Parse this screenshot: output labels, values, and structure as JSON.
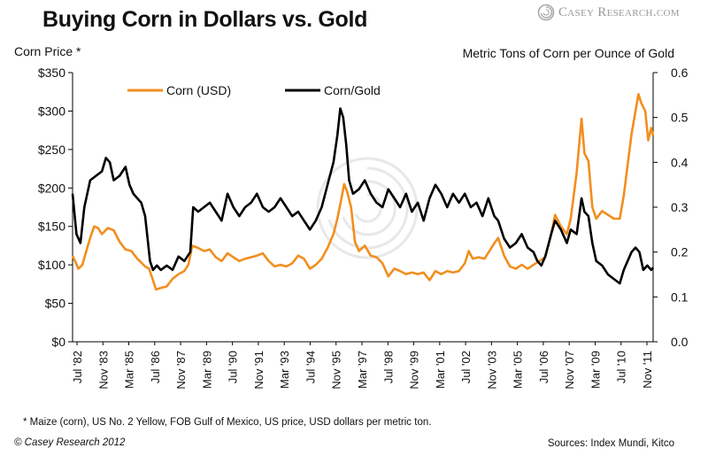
{
  "title": "Buying Corn in Dollars vs. Gold",
  "brand": {
    "name": "Casey Research.com",
    "logo_icon": "swirl-logo-icon"
  },
  "colors": {
    "corn": "#f28e1e",
    "gold": "#000000",
    "watermark": "#e6e6e6"
  },
  "left_axis_label": "Corn Price *",
  "right_axis_label": "Metric Tons of Corn per Ounce of Gold",
  "footnote": "* Maize (corn), US No. 2 Yellow, FOB Gulf of Mexico, US price, USD dollars per metric ton.",
  "copyright": "© Casey Research 2012",
  "sources": "Sources: Index Mundi, Kitco",
  "chart_data": {
    "type": "line",
    "x_unit": "decimal year",
    "xlim": [
      1982.5,
      2012.1
    ],
    "left_axis": {
      "label": "Corn Price *",
      "ylim": [
        0,
        350
      ],
      "ticks": [
        "$0",
        "$50",
        "$100",
        "$150",
        "$200",
        "$250",
        "$300",
        "$350"
      ]
    },
    "right_axis": {
      "label": "Metric Tons of Corn per Ounce of Gold",
      "ylim": [
        0,
        0.6
      ],
      "ticks": [
        "0.0",
        "0.1",
        "0.2",
        "0.3",
        "0.4",
        "0.5",
        "0.6"
      ]
    },
    "x_tick_labels": [
      "Jul '82",
      "Nov '83",
      "Mar '85",
      "Jul '86",
      "Nov '87",
      "Mar '89",
      "Jul '90",
      "Nov '91",
      "Mar '93",
      "Jul '94",
      "Nov '95",
      "Mar '97",
      "Jul '98",
      "Nov '99",
      "Mar '01",
      "Jul '02",
      "Nov '03",
      "Mar '05",
      "Jul '06",
      "Nov '07",
      "Mar '09",
      "Jul '10",
      "Nov '11"
    ],
    "legend": {
      "position": "top-left",
      "entries": [
        "Corn (USD)",
        "Corn/Gold"
      ]
    },
    "grid": false,
    "series": [
      {
        "name": "Corn (USD)",
        "axis": "left",
        "color": "#f28e1e",
        "points": [
          [
            1982.5,
            112
          ],
          [
            1982.8,
            95
          ],
          [
            1983.0,
            100
          ],
          [
            1983.2,
            118
          ],
          [
            1983.4,
            135
          ],
          [
            1983.6,
            150
          ],
          [
            1983.8,
            148
          ],
          [
            1984.0,
            140
          ],
          [
            1984.3,
            148
          ],
          [
            1984.6,
            145
          ],
          [
            1984.9,
            130
          ],
          [
            1985.2,
            120
          ],
          [
            1985.5,
            118
          ],
          [
            1985.8,
            108
          ],
          [
            1986.0,
            103
          ],
          [
            1986.2,
            98
          ],
          [
            1986.4,
            95
          ],
          [
            1986.6,
            80
          ],
          [
            1986.75,
            68
          ],
          [
            1987.0,
            70
          ],
          [
            1987.3,
            72
          ],
          [
            1987.6,
            82
          ],
          [
            1987.9,
            88
          ],
          [
            1988.2,
            92
          ],
          [
            1988.4,
            100
          ],
          [
            1988.5,
            112
          ],
          [
            1988.6,
            125
          ],
          [
            1988.9,
            122
          ],
          [
            1989.2,
            118
          ],
          [
            1989.5,
            120
          ],
          [
            1989.8,
            110
          ],
          [
            1990.1,
            105
          ],
          [
            1990.4,
            115
          ],
          [
            1990.7,
            110
          ],
          [
            1991.0,
            105
          ],
          [
            1991.3,
            108
          ],
          [
            1991.6,
            110
          ],
          [
            1991.9,
            112
          ],
          [
            1992.2,
            115
          ],
          [
            1992.5,
            105
          ],
          [
            1992.8,
            98
          ],
          [
            1993.1,
            100
          ],
          [
            1993.4,
            98
          ],
          [
            1993.7,
            102
          ],
          [
            1994.0,
            112
          ],
          [
            1994.3,
            108
          ],
          [
            1994.6,
            95
          ],
          [
            1994.9,
            100
          ],
          [
            1995.2,
            108
          ],
          [
            1995.5,
            122
          ],
          [
            1995.8,
            140
          ],
          [
            1996.0,
            160
          ],
          [
            1996.2,
            185
          ],
          [
            1996.35,
            205
          ],
          [
            1996.5,
            195
          ],
          [
            1996.7,
            175
          ],
          [
            1996.9,
            130
          ],
          [
            1997.1,
            118
          ],
          [
            1997.4,
            125
          ],
          [
            1997.7,
            112
          ],
          [
            1998.0,
            110
          ],
          [
            1998.3,
            102
          ],
          [
            1998.6,
            85
          ],
          [
            1998.9,
            95
          ],
          [
            1999.2,
            92
          ],
          [
            1999.5,
            88
          ],
          [
            1999.8,
            90
          ],
          [
            2000.1,
            88
          ],
          [
            2000.4,
            90
          ],
          [
            2000.7,
            80
          ],
          [
            2001.0,
            92
          ],
          [
            2001.3,
            88
          ],
          [
            2001.6,
            92
          ],
          [
            2001.9,
            90
          ],
          [
            2002.2,
            92
          ],
          [
            2002.5,
            102
          ],
          [
            2002.7,
            118
          ],
          [
            2002.9,
            108
          ],
          [
            2003.2,
            110
          ],
          [
            2003.5,
            108
          ],
          [
            2003.8,
            120
          ],
          [
            2004.0,
            128
          ],
          [
            2004.2,
            135
          ],
          [
            2004.5,
            112
          ],
          [
            2004.8,
            98
          ],
          [
            2005.1,
            95
          ],
          [
            2005.4,
            100
          ],
          [
            2005.7,
            95
          ],
          [
            2006.0,
            100
          ],
          [
            2006.3,
            105
          ],
          [
            2006.6,
            110
          ],
          [
            2006.9,
            140
          ],
          [
            2007.1,
            165
          ],
          [
            2007.4,
            150
          ],
          [
            2007.7,
            140
          ],
          [
            2007.9,
            160
          ],
          [
            2008.2,
            220
          ],
          [
            2008.45,
            290
          ],
          [
            2008.6,
            245
          ],
          [
            2008.8,
            235
          ],
          [
            2009.0,
            175
          ],
          [
            2009.2,
            160
          ],
          [
            2009.5,
            170
          ],
          [
            2009.8,
            165
          ],
          [
            2010.1,
            160
          ],
          [
            2010.4,
            160
          ],
          [
            2010.6,
            190
          ],
          [
            2010.8,
            230
          ],
          [
            2011.0,
            270
          ],
          [
            2011.2,
            300
          ],
          [
            2011.35,
            322
          ],
          [
            2011.5,
            310
          ],
          [
            2011.7,
            300
          ],
          [
            2011.85,
            262
          ],
          [
            2012.0,
            278
          ],
          [
            2012.1,
            268
          ]
        ]
      },
      {
        "name": "Corn/Gold",
        "axis": "right",
        "color": "#000000",
        "points": [
          [
            1982.5,
            0.33
          ],
          [
            1982.7,
            0.24
          ],
          [
            1982.9,
            0.22
          ],
          [
            1983.1,
            0.3
          ],
          [
            1983.4,
            0.36
          ],
          [
            1983.7,
            0.37
          ],
          [
            1984.0,
            0.38
          ],
          [
            1984.2,
            0.41
          ],
          [
            1984.4,
            0.4
          ],
          [
            1984.6,
            0.36
          ],
          [
            1984.9,
            0.37
          ],
          [
            1985.2,
            0.39
          ],
          [
            1985.4,
            0.35
          ],
          [
            1985.6,
            0.33
          ],
          [
            1985.8,
            0.32
          ],
          [
            1986.0,
            0.31
          ],
          [
            1986.2,
            0.28
          ],
          [
            1986.45,
            0.18
          ],
          [
            1986.6,
            0.16
          ],
          [
            1986.8,
            0.17
          ],
          [
            1987.0,
            0.16
          ],
          [
            1987.3,
            0.17
          ],
          [
            1987.6,
            0.16
          ],
          [
            1987.9,
            0.19
          ],
          [
            1988.2,
            0.18
          ],
          [
            1988.5,
            0.2
          ],
          [
            1988.65,
            0.3
          ],
          [
            1988.9,
            0.29
          ],
          [
            1989.2,
            0.3
          ],
          [
            1989.5,
            0.31
          ],
          [
            1989.8,
            0.29
          ],
          [
            1990.1,
            0.27
          ],
          [
            1990.4,
            0.33
          ],
          [
            1990.7,
            0.3
          ],
          [
            1991.0,
            0.28
          ],
          [
            1991.3,
            0.3
          ],
          [
            1991.6,
            0.31
          ],
          [
            1991.9,
            0.33
          ],
          [
            1992.2,
            0.3
          ],
          [
            1992.5,
            0.29
          ],
          [
            1992.8,
            0.3
          ],
          [
            1993.1,
            0.32
          ],
          [
            1993.4,
            0.3
          ],
          [
            1993.7,
            0.28
          ],
          [
            1994.0,
            0.29
          ],
          [
            1994.3,
            0.27
          ],
          [
            1994.6,
            0.25
          ],
          [
            1994.9,
            0.27
          ],
          [
            1995.2,
            0.3
          ],
          [
            1995.5,
            0.35
          ],
          [
            1995.8,
            0.4
          ],
          [
            1996.0,
            0.46
          ],
          [
            1996.15,
            0.52
          ],
          [
            1996.3,
            0.5
          ],
          [
            1996.45,
            0.44
          ],
          [
            1996.6,
            0.36
          ],
          [
            1996.8,
            0.33
          ],
          [
            1997.1,
            0.34
          ],
          [
            1997.4,
            0.36
          ],
          [
            1997.7,
            0.33
          ],
          [
            1998.0,
            0.31
          ],
          [
            1998.3,
            0.3
          ],
          [
            1998.6,
            0.34
          ],
          [
            1998.9,
            0.32
          ],
          [
            1999.2,
            0.3
          ],
          [
            1999.5,
            0.33
          ],
          [
            1999.8,
            0.29
          ],
          [
            2000.1,
            0.31
          ],
          [
            2000.4,
            0.27
          ],
          [
            2000.7,
            0.32
          ],
          [
            2001.0,
            0.35
          ],
          [
            2001.3,
            0.33
          ],
          [
            2001.6,
            0.3
          ],
          [
            2001.9,
            0.33
          ],
          [
            2002.2,
            0.31
          ],
          [
            2002.5,
            0.33
          ],
          [
            2002.8,
            0.3
          ],
          [
            2003.1,
            0.31
          ],
          [
            2003.4,
            0.28
          ],
          [
            2003.7,
            0.32
          ],
          [
            2004.0,
            0.28
          ],
          [
            2004.2,
            0.27
          ],
          [
            2004.5,
            0.23
          ],
          [
            2004.8,
            0.21
          ],
          [
            2005.1,
            0.22
          ],
          [
            2005.4,
            0.24
          ],
          [
            2005.7,
            0.21
          ],
          [
            2006.0,
            0.2
          ],
          [
            2006.2,
            0.18
          ],
          [
            2006.4,
            0.17
          ],
          [
            2006.6,
            0.19
          ],
          [
            2006.9,
            0.24
          ],
          [
            2007.1,
            0.27
          ],
          [
            2007.4,
            0.25
          ],
          [
            2007.7,
            0.22
          ],
          [
            2007.9,
            0.25
          ],
          [
            2008.2,
            0.24
          ],
          [
            2008.45,
            0.32
          ],
          [
            2008.6,
            0.29
          ],
          [
            2008.8,
            0.28
          ],
          [
            2009.0,
            0.22
          ],
          [
            2009.2,
            0.18
          ],
          [
            2009.5,
            0.17
          ],
          [
            2009.8,
            0.15
          ],
          [
            2010.1,
            0.14
          ],
          [
            2010.4,
            0.13
          ],
          [
            2010.6,
            0.16
          ],
          [
            2010.8,
            0.18
          ],
          [
            2011.0,
            0.2
          ],
          [
            2011.2,
            0.21
          ],
          [
            2011.4,
            0.2
          ],
          [
            2011.6,
            0.16
          ],
          [
            2011.8,
            0.17
          ],
          [
            2012.0,
            0.16
          ],
          [
            2012.1,
            0.165
          ]
        ]
      }
    ]
  }
}
